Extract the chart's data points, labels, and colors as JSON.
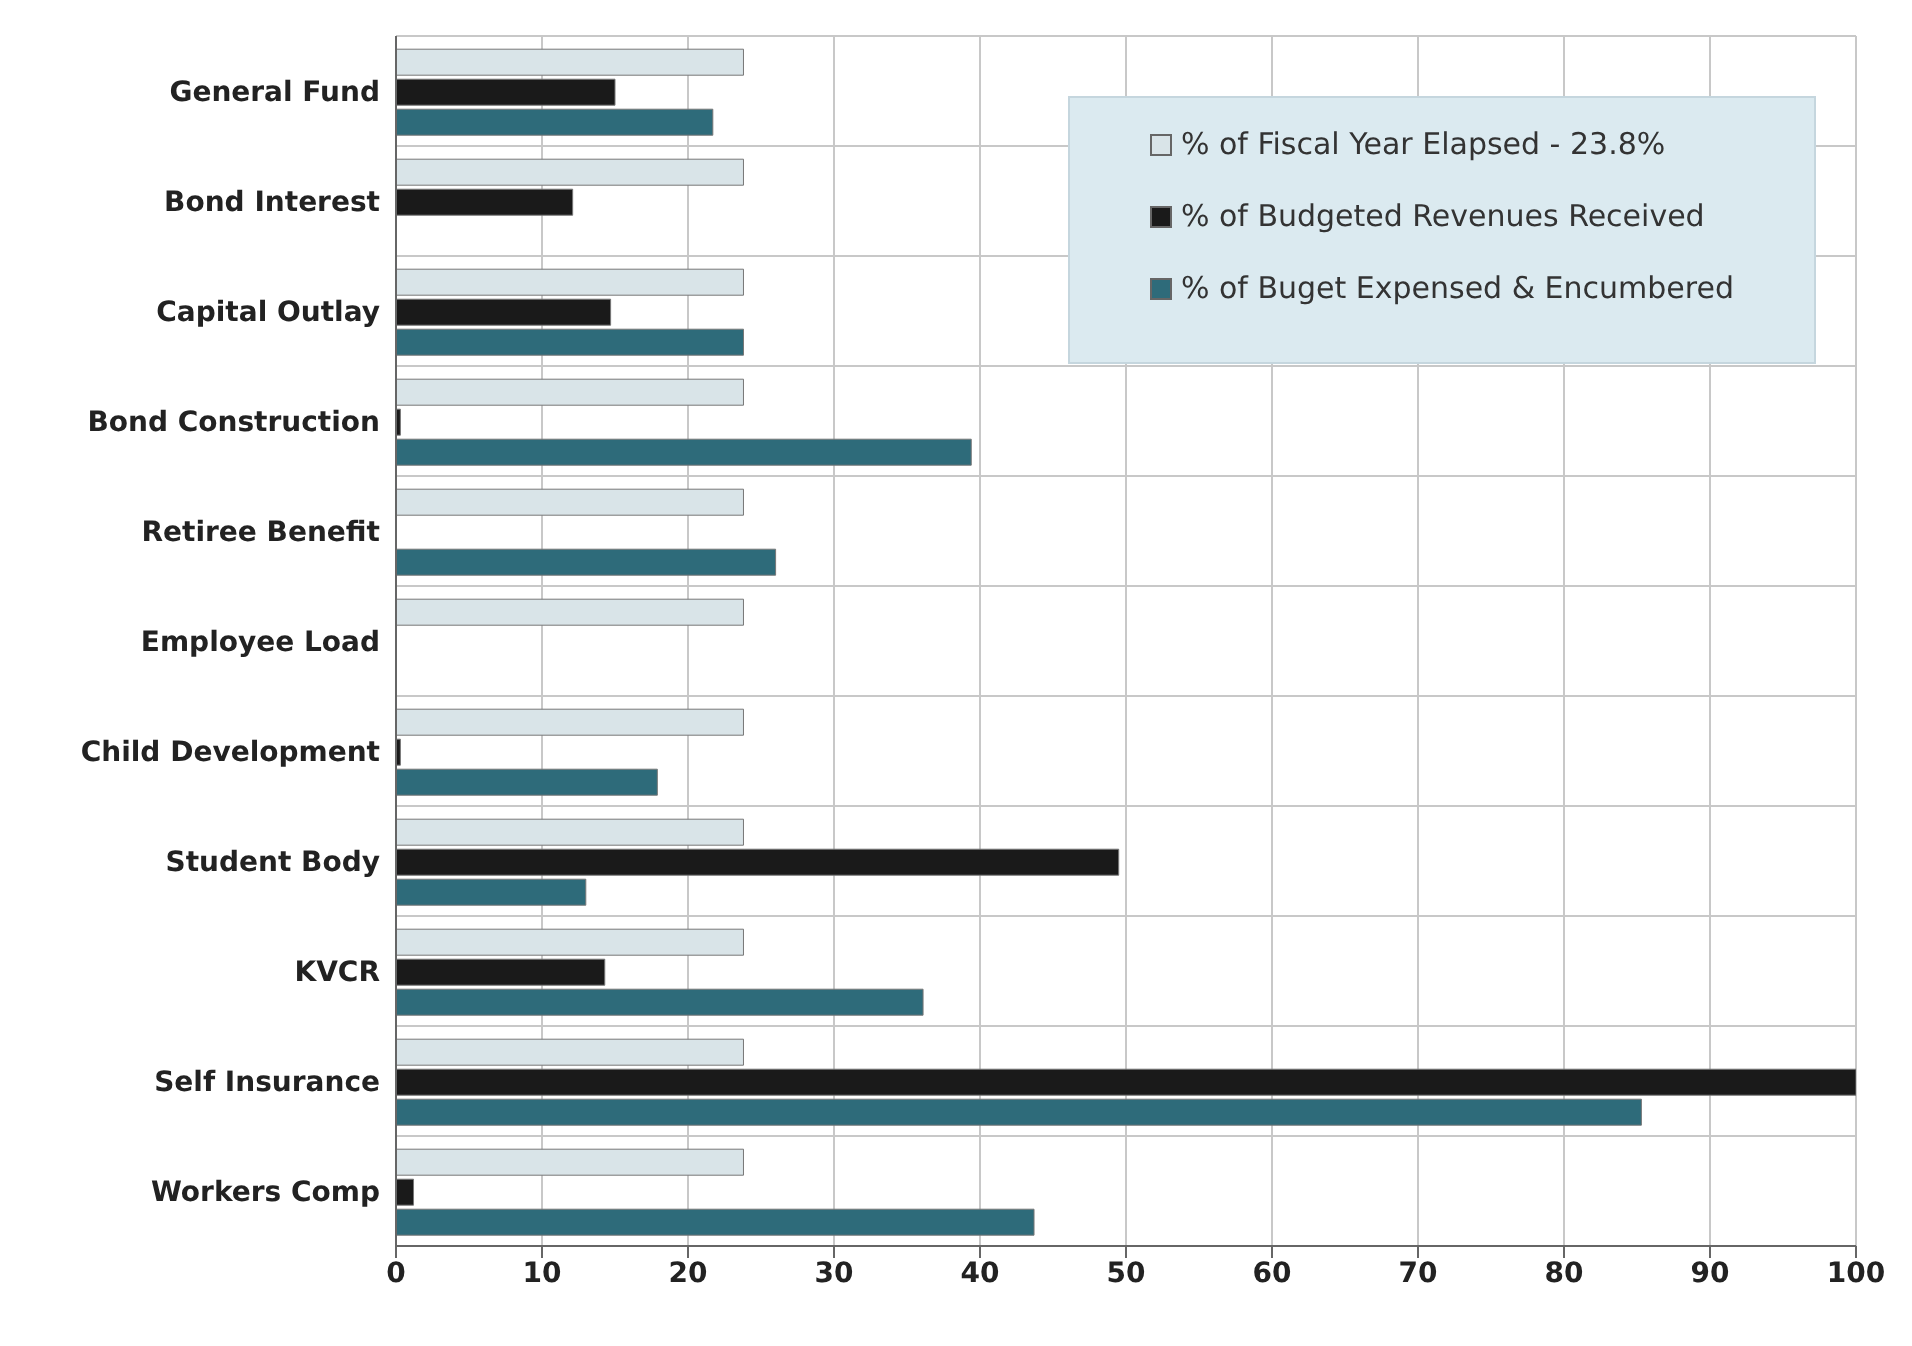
{
  "chart_data": {
    "type": "bar",
    "orientation": "horizontal",
    "categories": [
      "General Fund",
      "Bond Interest",
      "Capital Outlay",
      "Bond Construction",
      "Retiree Benefit",
      "Employee Load",
      "Child Development",
      "Student Body",
      "KVCR",
      "Self Insurance",
      "Workers Comp"
    ],
    "series": [
      {
        "name": "% of Fiscal Year Elapsed - 23.8%",
        "color": "#d9e4e8",
        "values": [
          23.8,
          23.8,
          23.8,
          23.8,
          23.8,
          23.8,
          23.8,
          23.8,
          23.8,
          23.8,
          23.8
        ]
      },
      {
        "name": "% of Budgeted Revenues Received",
        "color": "#1a1a1a",
        "values": [
          15.0,
          12.1,
          14.7,
          0.3,
          null,
          null,
          0.3,
          49.5,
          14.3,
          100,
          1.2
        ]
      },
      {
        "name": "% of Buget Expensed & Encumbered",
        "color": "#2e6b7a",
        "values": [
          21.7,
          null,
          23.8,
          39.4,
          26.0,
          null,
          17.9,
          13.0,
          36.1,
          85.3,
          43.7
        ]
      }
    ],
    "xlim": [
      0,
      100
    ],
    "xticks": [
      0,
      10,
      20,
      30,
      40,
      50,
      60,
      70,
      80,
      90,
      100
    ],
    "grid": true,
    "legend": "top right"
  }
}
